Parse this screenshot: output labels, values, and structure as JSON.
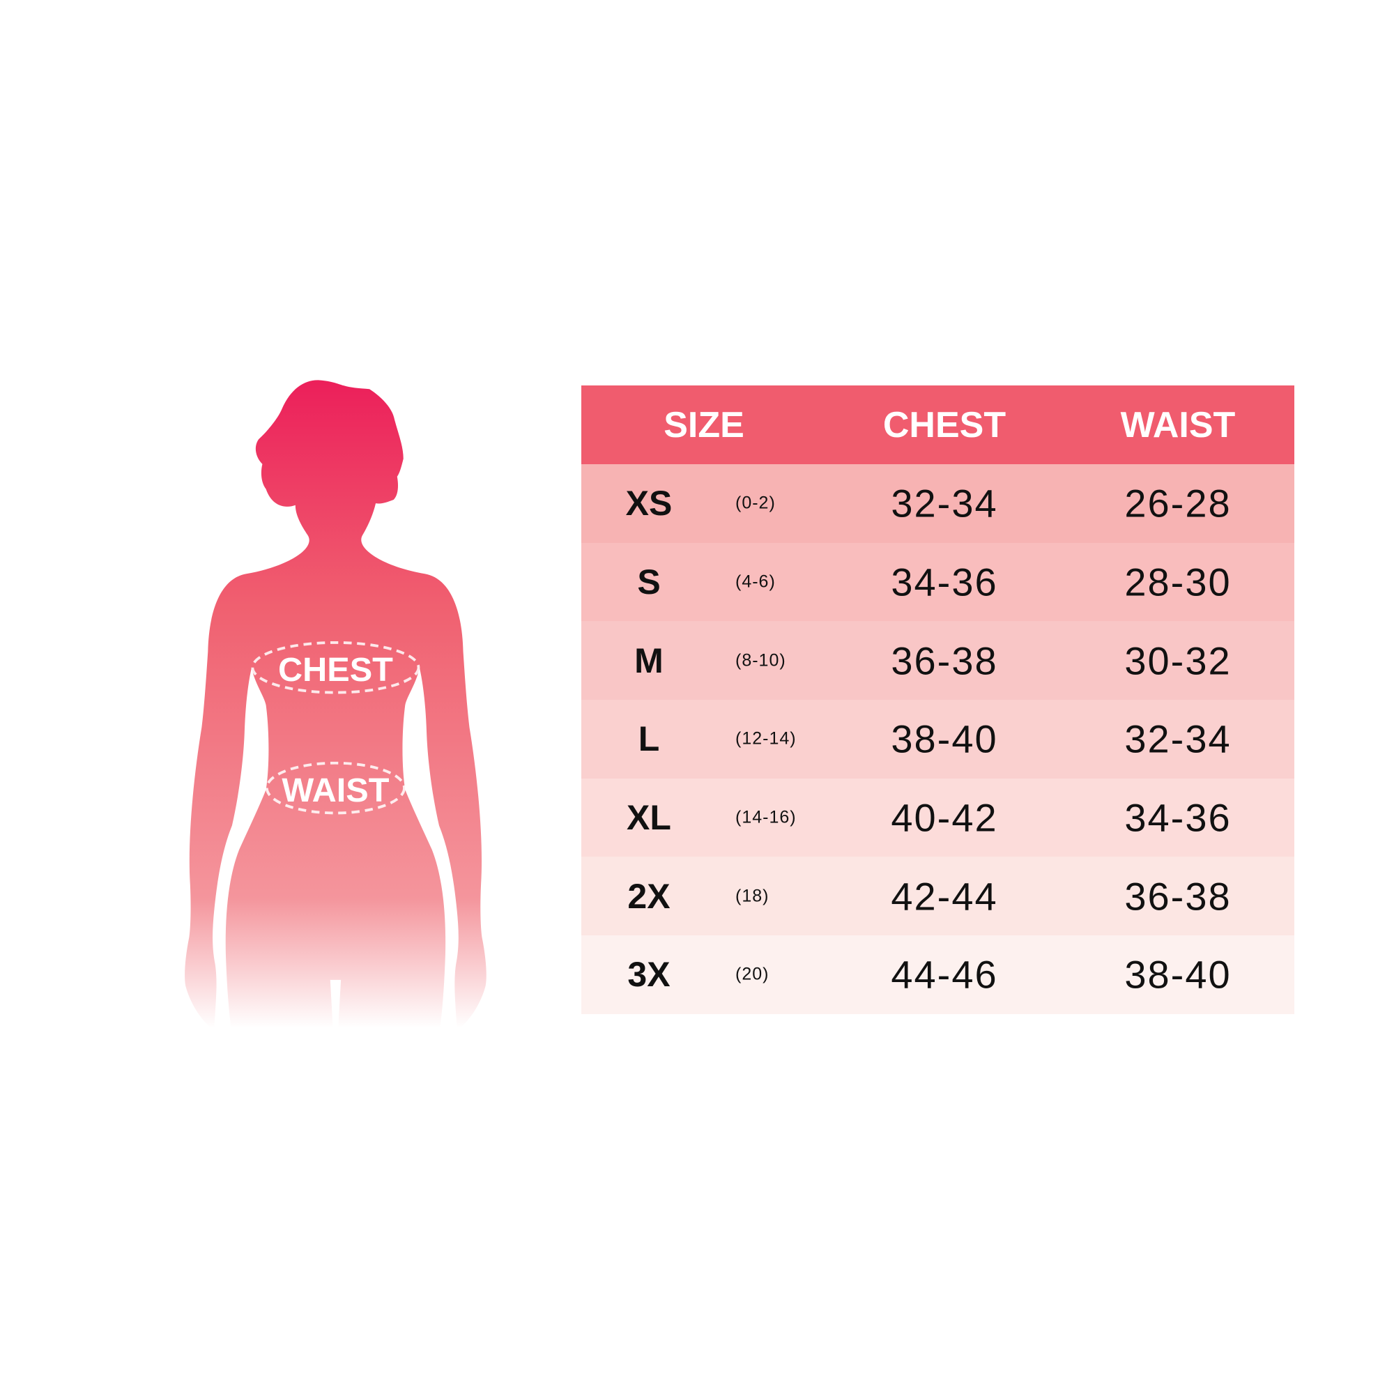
{
  "figure": {
    "chest_label": "CHEST",
    "waist_label": "WAIST",
    "gradient_colors": [
      "#ec1f5a",
      "#f06070",
      "#f4959c",
      "#ffffff"
    ]
  },
  "table": {
    "header_color": "#f05c6e",
    "headers": {
      "size": "SIZE",
      "chest": "CHEST",
      "waist": "WAIST"
    },
    "rows": [
      {
        "size": "XS",
        "us": "(0-2)",
        "chest": "32-34",
        "waist": "26-28",
        "color": "#f7b3b3"
      },
      {
        "size": "S",
        "us": "(4-6)",
        "chest": "34-36",
        "waist": "28-30",
        "color": "#f9bdbd"
      },
      {
        "size": "M",
        "us": "(8-10)",
        "chest": "36-38",
        "waist": "30-32",
        "color": "#f9c6c6"
      },
      {
        "size": "L",
        "us": "(12-14)",
        "chest": "38-40",
        "waist": "32-34",
        "color": "#fad0cf"
      },
      {
        "size": "XL",
        "us": "(14-16)",
        "chest": "40-42",
        "waist": "34-36",
        "color": "#fcdcda"
      },
      {
        "size": "2X",
        "us": "(18)",
        "chest": "42-44",
        "waist": "36-38",
        "color": "#fce6e3"
      },
      {
        "size": "3X",
        "us": "(20)",
        "chest": "44-46",
        "waist": "38-40",
        "color": "#fdf1ef"
      }
    ]
  }
}
